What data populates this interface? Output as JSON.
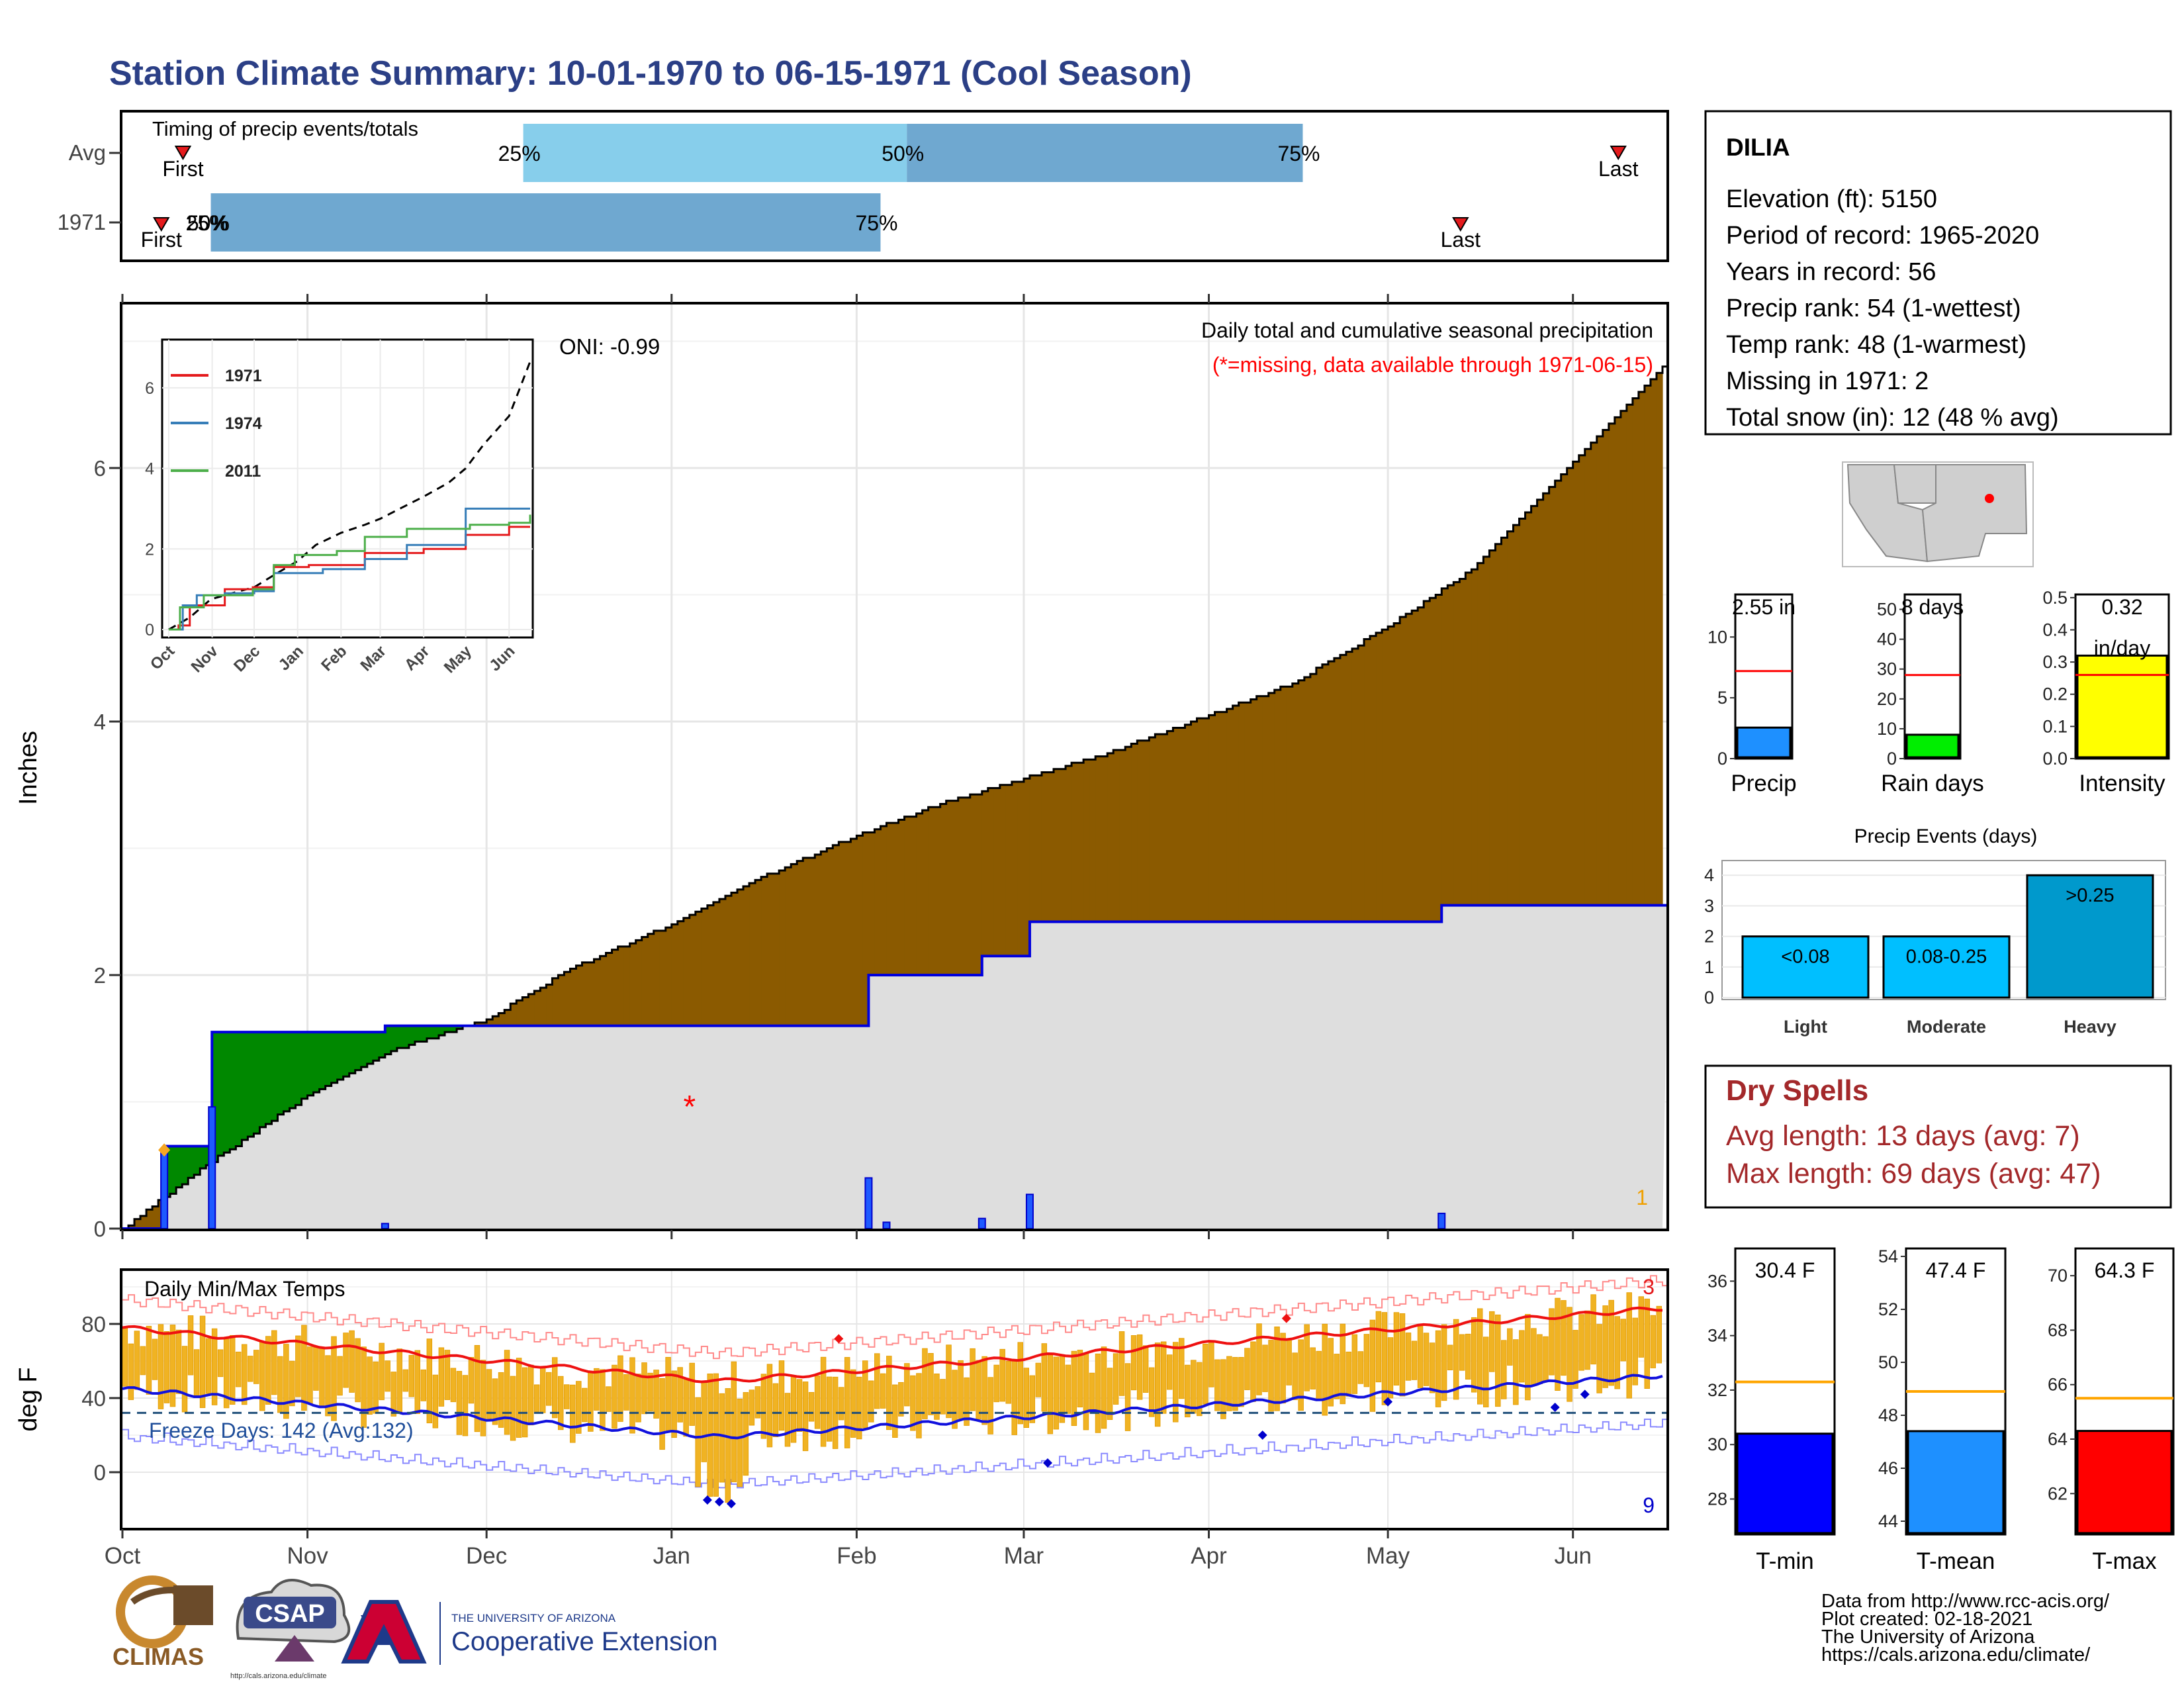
{
  "title": "Station Climate Summary: 10-01-1970 to 06-15-1971 (Cool Season)",
  "timing": {
    "title": "Timing of precip events/totals",
    "rows": [
      {
        "label": "Avg",
        "first_label": "First",
        "last_label": "Last",
        "q25_label": "25%",
        "q50_label": "50%",
        "q75_label": "75%",
        "first": 0.11,
        "q25": 0.07,
        "q50": 0.105,
        "q75": 0.115,
        "last": 0.2
      },
      {
        "label": "1971",
        "first_label": "First",
        "last_label": "Last",
        "q25_label": "25%",
        "q50_label": "50%",
        "q75_label": "75%",
        "first": 0.004,
        "q25": 0.01,
        "q50": 0.012,
        "q75": 0.75,
        "last": 0.88
      }
    ],
    "fractions": {
      "avg": {
        "first": 0.04,
        "q25": 0.26,
        "q50": 0.508,
        "q75": 0.764,
        "last": 0.968
      },
      "y1971": {
        "first": 0.026,
        "q25": 0.058,
        "q50": 0.059,
        "q75": 0.491,
        "last": 0.866
      }
    }
  },
  "precip": {
    "ylabel": "Inches",
    "oni": "ONI: -0.99",
    "subtitle": "Daily total and cumulative seasonal precipitation",
    "note": "(*=missing, data available through 1971-06-15)",
    "corner_count": "1",
    "months": [
      "Oct",
      "Nov",
      "Dec",
      "Jan",
      "Feb",
      "Mar",
      "Apr",
      "May",
      "Jun"
    ],
    "yticks": [
      "0",
      "2",
      "4",
      "6"
    ]
  },
  "inset": {
    "yticks": [
      "0",
      "2",
      "4",
      "6"
    ],
    "months": [
      "Oct",
      "Nov",
      "Dec",
      "Jan",
      "Feb",
      "Mar",
      "Apr",
      "May",
      "Jun"
    ],
    "legend": [
      {
        "name": "1971",
        "color": "#e41a1c"
      },
      {
        "name": "1974",
        "color": "#377eb8"
      },
      {
        "name": "2011",
        "color": "#4daf4a"
      }
    ]
  },
  "temps": {
    "title": "Daily Min/Max Temps",
    "ylabel": "deg F",
    "freeze": "Freeze Days: 142 (Avg:132)",
    "count_top": "3",
    "count_bottom": "9",
    "yticks": [
      "0",
      "40",
      "80"
    ]
  },
  "station": {
    "name": "DILIA",
    "lines": [
      "Elevation (ft): 5150",
      "Period of record: 1965-2020",
      "Years in record: 56",
      "Precip rank: 54 (1-wettest)",
      "Temp rank: 48 (1-warmest)",
      "Missing in 1971: 2",
      "Total snow (in): 12 (48 % avg)"
    ]
  },
  "mini_precip": [
    {
      "label": "Precip",
      "value_label": "2.55 in",
      "value": 2.55,
      "avg": 7.2,
      "ymax": 13.5,
      "ticks": [
        "0",
        "5",
        "10"
      ],
      "tickvals": [
        0,
        5,
        10
      ],
      "color": "#1e90ff"
    },
    {
      "label": "Rain days",
      "value_label": "8 days",
      "value": 8,
      "avg": 28,
      "ymax": 55,
      "ticks": [
        "0",
        "10",
        "20",
        "30",
        "40",
        "50"
      ],
      "tickvals": [
        0,
        10,
        20,
        30,
        40,
        50
      ],
      "color": "#00ee00"
    },
    {
      "label": "Intensity",
      "value_label": "0.32",
      "value_label2": "in/day",
      "value": 0.32,
      "avg": 0.26,
      "ymax": 0.51,
      "ticks": [
        "0.0",
        "0.1",
        "0.2",
        "0.3",
        "0.4",
        "0.5"
      ],
      "tickvals": [
        0,
        0.1,
        0.2,
        0.3,
        0.4,
        0.5
      ],
      "color": "#ffff00"
    }
  ],
  "events": {
    "title": "Precip Events (days)",
    "categories": [
      "Light",
      "Moderate",
      "Heavy"
    ],
    "bar_labels": [
      "<0.08",
      "0.08-0.25",
      ">0.25"
    ],
    "values": [
      2,
      2,
      4
    ],
    "yticks": [
      "0",
      "1",
      "2",
      "3",
      "4"
    ],
    "color": "#00bfff",
    "heavy_color": "#0099cc"
  },
  "dry": {
    "title": "Dry Spells",
    "avg": "Avg length: 13 days (avg: 7)",
    "max": "Max length: 69 days (avg: 47)"
  },
  "mini_temps": [
    {
      "label": "T-min",
      "value_label": "30.4 F",
      "value": 30.4,
      "avg": 32.3,
      "ymin": 26.7,
      "ymax": 37.2,
      "ticks": [
        "28",
        "30",
        "32",
        "34",
        "36"
      ],
      "tickvals": [
        28,
        30,
        32,
        34,
        36
      ],
      "color": "#0000ff"
    },
    {
      "label": "T-mean",
      "value_label": "47.4 F",
      "value": 47.4,
      "avg": 48.9,
      "ymin": 43.5,
      "ymax": 54.3,
      "ticks": [
        "44",
        "46",
        "48",
        "50",
        "52",
        "54"
      ],
      "tickvals": [
        44,
        46,
        48,
        50,
        52,
        54
      ],
      "color": "#1e90ff"
    },
    {
      "label": "T-max",
      "value_label": "64.3 F",
      "value": 64.3,
      "avg": 65.5,
      "ymin": 60.5,
      "ymax": 71.0,
      "ticks": [
        "62",
        "64",
        "66",
        "68",
        "70"
      ],
      "tickvals": [
        62,
        64,
        66,
        68,
        70
      ],
      "color": "#ff0000"
    }
  ],
  "footer": {
    "credits": [
      "Data from http://www.rcc-acis.org/",
      "Plot created: 02-18-2021",
      "The University of Arizona",
      "https://cals.arizona.edu/climate/"
    ],
    "climas": "CLIMAS",
    "csap": "CSAP",
    "csap_url": "http://cals.arizona.edu/climate",
    "ua_small": "THE UNIVERSITY OF ARIZONA",
    "ua_big": "Cooperative Extension"
  },
  "chart_data": {
    "type": "area",
    "title": "Station Climate Summary: 10-01-1970 to 06-15-1971 (Cool Season)",
    "ylabel": "Inches",
    "ylim": [
      0,
      7.3
    ],
    "series": [
      {
        "name": "Avg",
        "x": [
          "10-01",
          "10-15",
          "11-01",
          "11-15",
          "12-01",
          "12-15",
          "01-01",
          "01-15",
          "02-01",
          "02-15",
          "03-01",
          "03-15",
          "04-01",
          "04-15",
          "05-01",
          "05-15",
          "06-01",
          "06-15"
        ],
        "values": [
          0,
          0.5,
          1.05,
          1.4,
          1.65,
          2.05,
          2.4,
          2.75,
          3.1,
          3.35,
          3.55,
          3.75,
          4.05,
          4.3,
          4.75,
          5.2,
          6.05,
          6.8
        ]
      },
      {
        "name": "1971",
        "x": [
          "10-01",
          "10-08",
          "10-16",
          "11-14",
          "12-01",
          "02-03",
          "02-22",
          "03-02",
          "05-10",
          "06-15"
        ],
        "values": [
          0,
          0.65,
          1.55,
          1.6,
          1.6,
          2.0,
          2.15,
          2.42,
          2.55,
          2.55
        ]
      }
    ],
    "daily": {
      "x": [
        "10-08",
        "10-16",
        "11-14",
        "02-03",
        "02-06",
        "02-22",
        "03-02",
        "05-10"
      ],
      "values": [
        0.62,
        0.96,
        0.04,
        0.4,
        0.05,
        0.08,
        0.27,
        0.12
      ]
    }
  }
}
